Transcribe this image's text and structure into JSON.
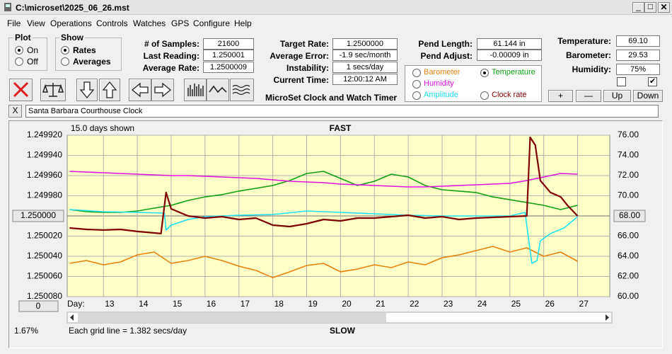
{
  "window": {
    "title": "C:\\microset\\2025_06_26.mst"
  },
  "menu": [
    "File",
    "View",
    "Operations",
    "Controls",
    "Watches",
    "GPS",
    "Configure",
    "Help"
  ],
  "plot_mode": {
    "label": "Plot",
    "options": [
      {
        "label": "On",
        "checked": true
      },
      {
        "label": "Off",
        "checked": false
      }
    ]
  },
  "show_mode": {
    "label": "Show",
    "options": [
      {
        "label": "Rates",
        "checked": true
      },
      {
        "label": "Averages",
        "checked": false
      }
    ]
  },
  "readings": {
    "rate": [
      {
        "label": "# of Samples:",
        "value": "21600"
      },
      {
        "label": "Last Reading:",
        "value": "1.250001"
      },
      {
        "label": "Average Rate:",
        "value": "1.2500009"
      }
    ],
    "timing": [
      {
        "label": "Target Rate:",
        "value": "1.2500000"
      },
      {
        "label": "Average Error:",
        "value": "-1.9 sec/month"
      },
      {
        "label": "Instability:",
        "value": "1 secs/day"
      },
      {
        "label": "Current Time:",
        "value": "12:00:12 AM"
      }
    ],
    "pendulum": [
      {
        "label": "Pend Length:",
        "value": "61.144 in"
      },
      {
        "label": "Pend Adjust:",
        "value": "-0.00009 in"
      }
    ],
    "environment": [
      {
        "label": "Temperature:",
        "value": "69.10"
      },
      {
        "label": "Barometer:",
        "value": "29.53"
      },
      {
        "label": "Humidity:",
        "value": "75%"
      }
    ]
  },
  "checkboxes": [
    false,
    true
  ],
  "buttons": [
    "+",
    "—",
    "Up",
    "Down"
  ],
  "app_name": "MicroSet Clock and Watch Timer",
  "clear_button": "X",
  "clock_name": "Santa Barbara Courthouse Clock",
  "plot": {
    "type": "line",
    "days_shown": "15.0 days shown",
    "top_label": "FAST",
    "bottom_label": "SLOW",
    "x_label": "Day:",
    "grid_note": "Each grid line = 1.382 secs/day",
    "offset_button": "0",
    "zoom": "1.67%",
    "xlim": [
      11.93,
      27.95
    ],
    "xticks": [
      13,
      14,
      15,
      16,
      17,
      18,
      19,
      20,
      21,
      22,
      23,
      24,
      25,
      26,
      27
    ],
    "ylim": [
      1.25008,
      1.24992
    ],
    "yticks": [
      {
        "value": 1.24992,
        "label": "1.249920"
      },
      {
        "value": 1.24994,
        "label": "1.249940"
      },
      {
        "value": 1.24996,
        "label": "1.249960"
      },
      {
        "value": 1.24998,
        "label": "1.249980"
      },
      {
        "value": 1.25,
        "label": "1.250000"
      },
      {
        "value": 1.25002,
        "label": "1.250020"
      },
      {
        "value": 1.25004,
        "label": "1.250040"
      },
      {
        "value": 1.25006,
        "label": "1.250060"
      },
      {
        "value": 1.25008,
        "label": "1.250080"
      }
    ],
    "y2lim": [
      60,
      76
    ],
    "y2ticks": [
      {
        "value": 76,
        "label": "76.00"
      },
      {
        "value": 74,
        "label": "74.00"
      },
      {
        "value": 72,
        "label": "72.00"
      },
      {
        "value": 70,
        "label": "70.00"
      },
      {
        "value": 68,
        "label": "68.00"
      },
      {
        "value": 66,
        "label": "66.00"
      },
      {
        "value": 64,
        "label": "64.00"
      },
      {
        "value": 62,
        "label": "62.00"
      },
      {
        "value": 60,
        "label": "60.00"
      }
    ],
    "grid": true,
    "series": [
      {
        "name": "Barometer",
        "color": "#e8820c",
        "axis": "y2",
        "checked": false,
        "x": [
          12,
          12.5,
          13,
          13.5,
          14,
          14.5,
          15,
          15.5,
          16,
          16.5,
          17,
          17.5,
          18,
          18.5,
          19,
          19.5,
          20,
          20.5,
          21,
          21.5,
          22,
          22.5,
          23,
          23.5,
          24,
          24.5,
          25,
          25.5,
          26,
          26.5,
          27
        ],
        "values": [
          63.3,
          63.58,
          63.16,
          63.44,
          64.14,
          64.42,
          63.3,
          63.58,
          64.0,
          63.58,
          63.02,
          62.6,
          61.89,
          62.46,
          63.09,
          63.3,
          62.46,
          62.74,
          63.16,
          62.88,
          63.44,
          63.16,
          63.86,
          64.14,
          64.56,
          64.98,
          64.42,
          64.84,
          64.0,
          64.42,
          63.51
        ]
      },
      {
        "name": "Temperature",
        "color": "#10a010",
        "axis": "y2",
        "checked": true,
        "x": [
          12,
          12.5,
          13,
          13.5,
          14,
          14.5,
          15,
          15.5,
          16,
          16.5,
          17,
          17.5,
          18,
          18.5,
          19,
          19.5,
          20,
          20.5,
          21,
          21.5,
          22,
          22.5,
          23,
          23.5,
          24,
          24.5,
          25,
          25.5,
          26,
          26.5,
          27
        ],
        "values": [
          68.63,
          68.42,
          68.35,
          68.35,
          68.49,
          68.77,
          69.05,
          69.54,
          69.89,
          70.11,
          70.46,
          70.74,
          71.02,
          71.51,
          72.21,
          72.42,
          71.72,
          71.02,
          71.44,
          72.14,
          71.86,
          71.02,
          70.6,
          70.46,
          70.32,
          69.89,
          69.61,
          69.33,
          69.05,
          68.63,
          69.05
        ]
      },
      {
        "name": "Humidity",
        "color": "#e010e0",
        "axis": "y2",
        "checked": false,
        "x": [
          12,
          12.5,
          13,
          13.5,
          14,
          14.5,
          15,
          15.5,
          16,
          16.5,
          17,
          17.5,
          18,
          18.5,
          19,
          19.5,
          20,
          20.5,
          21,
          21.5,
          22,
          22.5,
          23,
          23.5,
          24,
          24.5,
          25,
          25.5,
          26,
          26.5,
          27
        ],
        "values": [
          72.42,
          72.35,
          72.28,
          72.21,
          72.14,
          72.07,
          72.0,
          72.0,
          71.93,
          71.86,
          71.79,
          71.72,
          71.58,
          71.44,
          71.37,
          71.3,
          71.16,
          71.09,
          71.02,
          70.95,
          70.88,
          70.88,
          70.95,
          71.02,
          71.09,
          71.16,
          71.23,
          71.51,
          71.86,
          72.21,
          72.14
        ]
      },
      {
        "name": "Amplitude",
        "color": "#20e0f0",
        "axis": "y2",
        "checked": false,
        "x": [
          12,
          13,
          14,
          14.8,
          14.85,
          15,
          15.5,
          16,
          17,
          18,
          19,
          20,
          21,
          22,
          23,
          24,
          25,
          25.45,
          25.65,
          25.8,
          25.9,
          26.2,
          26.6,
          27
        ],
        "values": [
          68.63,
          68.42,
          68.35,
          68.28,
          66.6,
          67.09,
          67.65,
          67.93,
          68.07,
          68.14,
          68.49,
          68.35,
          68.21,
          68.07,
          68.0,
          68.0,
          68.0,
          68.35,
          63.3,
          63.58,
          65.54,
          66.25,
          66.81,
          67.93
        ]
      },
      {
        "name": "Clock rate",
        "color": "#800000",
        "checked": false,
        "x": [
          12,
          12.5,
          13,
          13.5,
          14,
          14.7,
          14.85,
          15,
          15.5,
          16,
          16.5,
          17,
          17.5,
          18,
          18.5,
          19,
          19.5,
          20,
          20.5,
          21,
          21.5,
          22,
          22.5,
          23,
          23.5,
          24,
          24.5,
          25,
          25.5,
          25.6,
          25.75,
          25.9,
          26.2,
          26.5,
          26.7,
          27
        ],
        "values": [
          1.2500119,
          1.2500133,
          1.250014,
          1.2500133,
          1.2500154,
          1.2500175,
          1.2499768,
          1.249993,
          1.25,
          1.2500021,
          1.2500007,
          1.2500035,
          1.2500021,
          1.2500091,
          1.2500105,
          1.2500077,
          1.2500035,
          1.2500049,
          1.2500021,
          1.2500021,
          1.2500007,
          1.2499993,
          1.2500021,
          1.2500007,
          1.2500035,
          1.2500021,
          1.2500014,
          1.2500007,
          1.25,
          1.2499221,
          1.2499298,
          1.2499649,
          1.2499768,
          1.2499811,
          1.2499895,
          1.25
        ]
      }
    ]
  }
}
